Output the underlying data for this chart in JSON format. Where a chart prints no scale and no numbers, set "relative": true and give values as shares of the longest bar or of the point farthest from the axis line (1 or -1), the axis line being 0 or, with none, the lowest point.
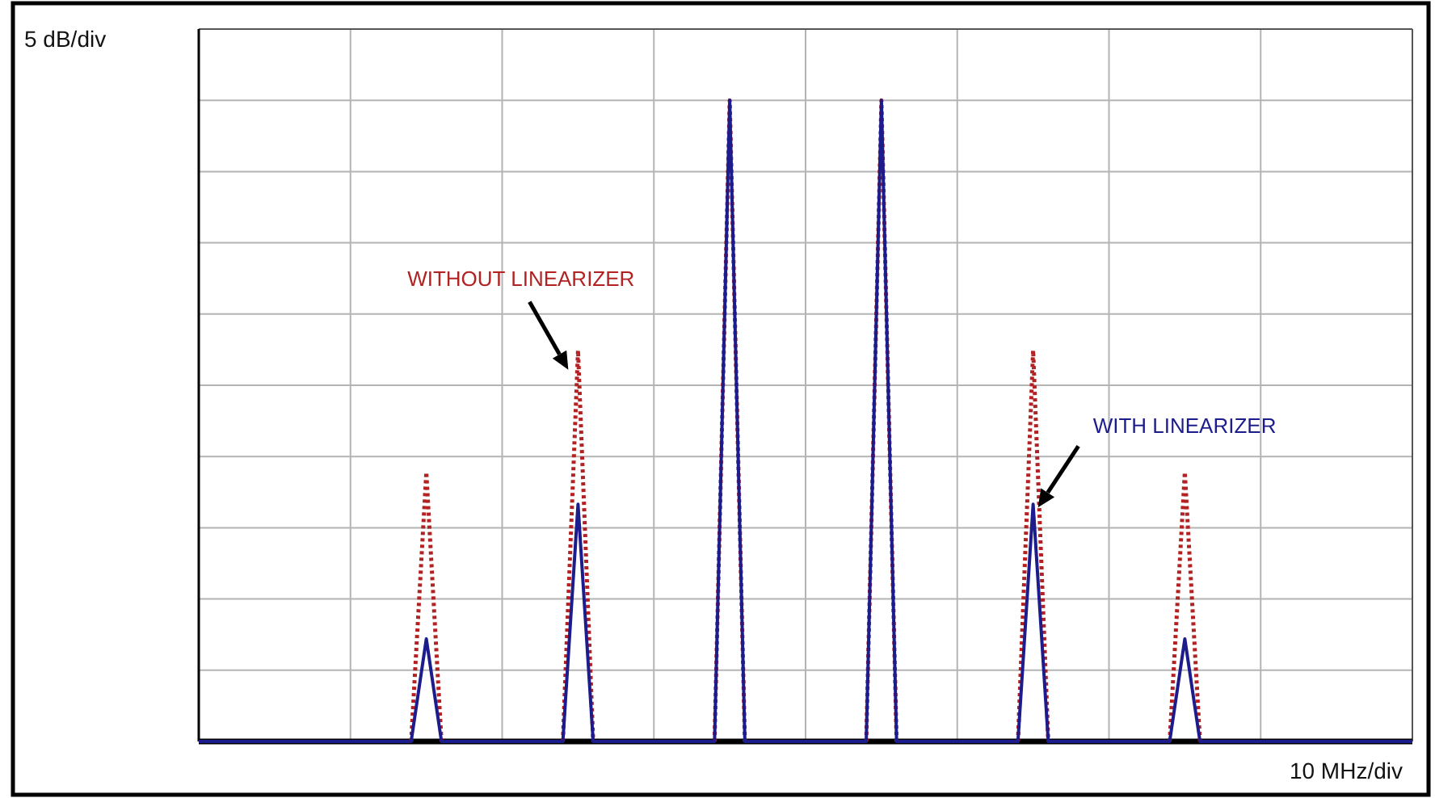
{
  "chart_data": {
    "type": "line",
    "relative": true,
    "annotations": [
      "5 dB/div",
      "10 MHz/div"
    ],
    "categories": [
      null,
      null,
      null,
      null,
      null,
      null,
      null,
      null,
      null,
      null,
      null,
      null,
      null,
      null,
      null,
      null,
      null,
      null,
      null,
      null,
      null,
      null,
      null,
      null,
      null,
      null,
      null,
      null,
      null,
      null,
      null,
      null,
      null,
      null,
      null,
      null,
      null,
      null,
      null,
      null,
      null,
      null,
      null,
      null,
      null,
      null,
      null,
      null,
      null,
      null,
      null,
      null,
      null,
      null,
      null,
      null,
      null,
      null,
      null,
      null,
      null,
      null,
      null,
      null,
      null,
      null,
      null,
      null,
      null,
      null,
      null,
      null,
      null,
      null,
      null,
      null,
      null,
      null,
      null,
      null,
      null
    ],
    "series": [
      {
        "name": "WITHOUT LINEARIZER",
        "color": "#b22222",
        "line_style": "dotted",
        "values": [
          null,
          null,
          null,
          null,
          null,
          null,
          null,
          null,
          null,
          null,
          null,
          null,
          null,
          null,
          0,
          0.42,
          0,
          null,
          null,
          null,
          null,
          null,
          null,
          null,
          0,
          0.61,
          0,
          null,
          null,
          null,
          null,
          null,
          null,
          null,
          0,
          1,
          0,
          null,
          null,
          null,
          null,
          null,
          null,
          null,
          0,
          1,
          0,
          null,
          null,
          null,
          null,
          null,
          null,
          null,
          0,
          0.61,
          0,
          null,
          null,
          null,
          null,
          null,
          null,
          null,
          0,
          0.42,
          0,
          null,
          null,
          null,
          null,
          null,
          null,
          null,
          null,
          null,
          null,
          null,
          null,
          null,
          null
        ]
      },
      {
        "name": "WITH LINEARIZER",
        "color": "#1c1c8c",
        "line_style": "solid",
        "values": [
          0,
          0,
          0,
          0,
          0,
          0,
          0,
          0,
          0,
          0,
          0,
          0,
          0,
          0,
          0,
          0.16,
          0,
          0,
          0,
          0,
          0,
          0,
          0,
          0,
          0,
          0.37,
          0,
          0,
          0,
          0,
          0,
          0,
          0,
          0,
          0,
          1,
          0,
          0,
          0,
          0,
          0,
          0,
          0,
          0,
          0,
          1,
          0,
          0,
          0,
          0,
          0,
          0,
          0,
          0,
          0,
          0.37,
          0,
          0,
          0,
          0,
          0,
          0,
          0,
          0,
          0,
          0.16,
          0,
          0,
          0,
          0,
          0,
          0,
          0,
          0,
          0,
          0,
          0,
          0,
          0,
          0,
          0
        ]
      }
    ],
    "grid": true,
    "legend": false,
    "marker": "none"
  }
}
